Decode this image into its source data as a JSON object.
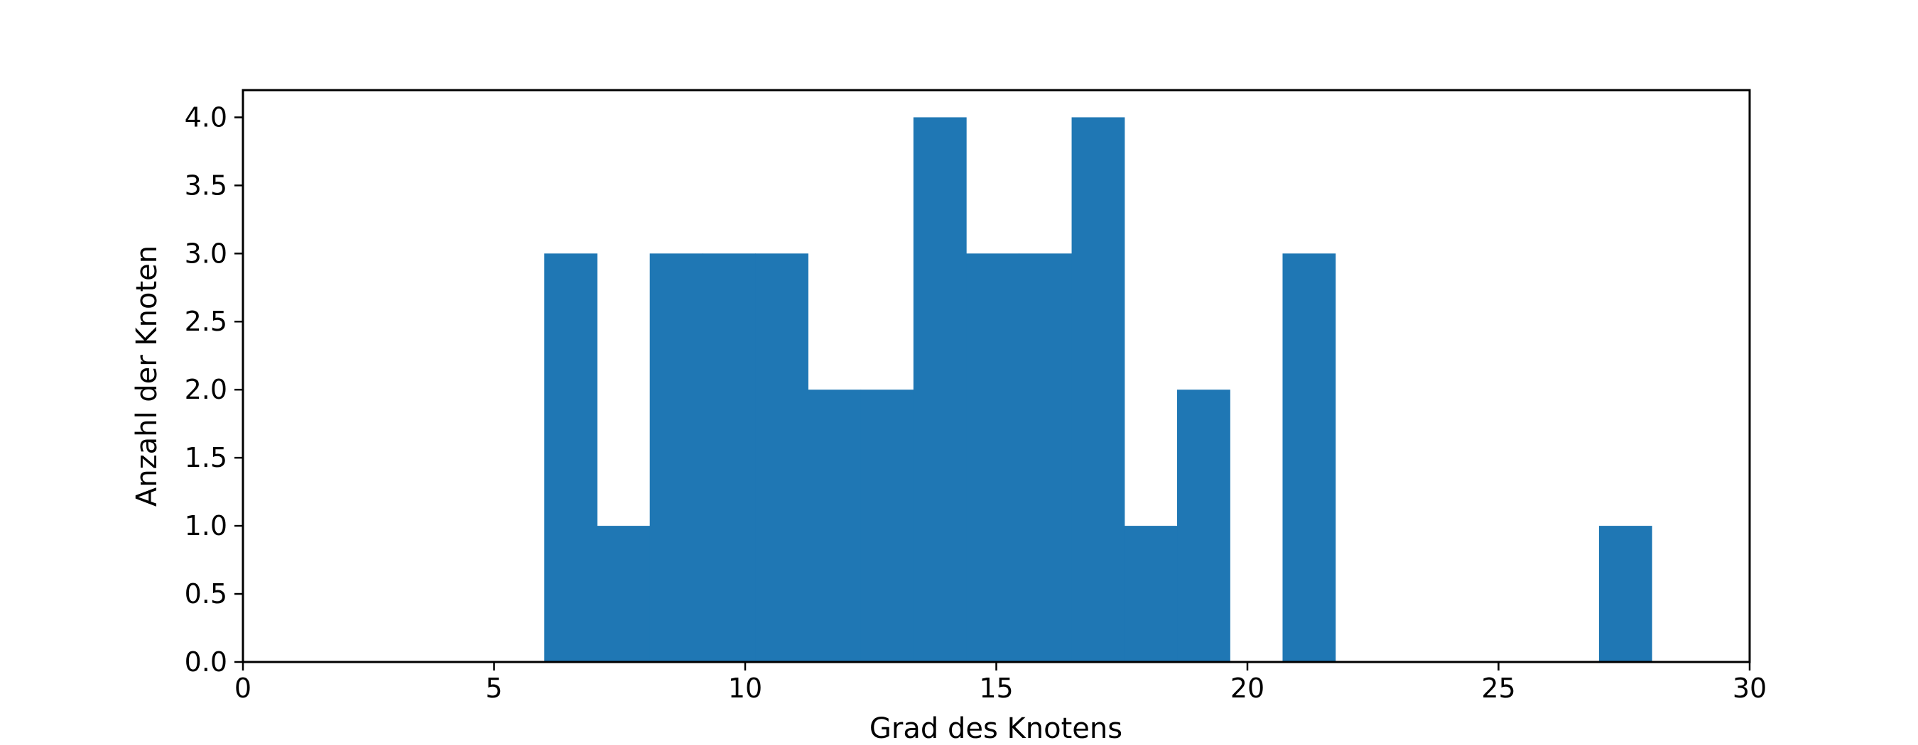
{
  "chart_data": {
    "type": "bar",
    "title": "",
    "xlabel": "Grad des Knotens",
    "ylabel": "Anzahl der Knoten",
    "xlim": [
      0,
      30
    ],
    "ylim": [
      0,
      4.2
    ],
    "grid": false,
    "color": "#1f77b4",
    "bins": [
      {
        "x0": 6.0,
        "x1": 7.05,
        "count": 3
      },
      {
        "x0": 7.05,
        "x1": 8.1,
        "count": 1
      },
      {
        "x0": 8.1,
        "x1": 9.15,
        "count": 3
      },
      {
        "x0": 9.15,
        "x1": 10.2,
        "count": 3
      },
      {
        "x0": 10.2,
        "x1": 11.25,
        "count": 3
      },
      {
        "x0": 11.25,
        "x1": 12.3,
        "count": 2
      },
      {
        "x0": 12.3,
        "x1": 13.35,
        "count": 2
      },
      {
        "x0": 13.35,
        "x1": 14.4,
        "count": 4
      },
      {
        "x0": 14.4,
        "x1": 15.45,
        "count": 3
      },
      {
        "x0": 15.45,
        "x1": 16.5,
        "count": 3
      },
      {
        "x0": 16.5,
        "x1": 17.55,
        "count": 4
      },
      {
        "x0": 17.55,
        "x1": 18.6,
        "count": 1
      },
      {
        "x0": 18.6,
        "x1": 19.65,
        "count": 2
      },
      {
        "x0": 19.65,
        "x1": 20.7,
        "count": 0
      },
      {
        "x0": 20.7,
        "x1": 21.75,
        "count": 3
      },
      {
        "x0": 21.75,
        "x1": 22.8,
        "count": 0
      },
      {
        "x0": 22.8,
        "x1": 23.85,
        "count": 0
      },
      {
        "x0": 23.85,
        "x1": 24.9,
        "count": 0
      },
      {
        "x0": 24.9,
        "x1": 25.95,
        "count": 0
      },
      {
        "x0": 25.95,
        "x1": 27.0,
        "count": 0
      },
      {
        "x0": 27.0,
        "x1": 28.05,
        "count": 1
      }
    ],
    "xticks": [
      0,
      5,
      10,
      15,
      20,
      25,
      30
    ],
    "xtick_labels": [
      "0",
      "5",
      "10",
      "15",
      "20",
      "25",
      "30"
    ],
    "yticks": [
      0,
      0.5,
      1,
      1.5,
      2,
      2.5,
      3,
      3.5,
      4
    ],
    "ytick_labels": [
      "0.0",
      "0.5",
      "1.0",
      "1.5",
      "2.0",
      "2.5",
      "3.0",
      "3.5",
      "4.0"
    ]
  }
}
